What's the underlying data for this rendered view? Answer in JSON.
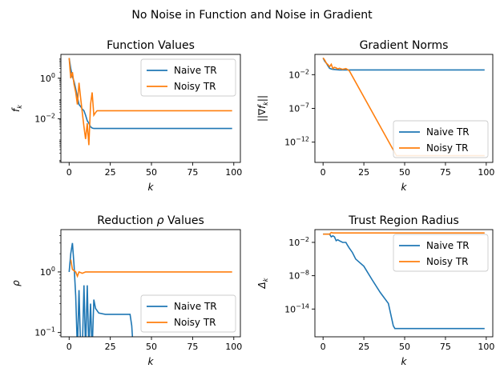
{
  "figure": {
    "suptitle": "No Noise in Function and Noise in Gradient"
  },
  "colors": {
    "naive": "#1f77b4",
    "noisy": "#ff7f0e"
  },
  "chart_data": [
    {
      "id": "function-values",
      "type": "line",
      "title": "Function Values",
      "xlabel": "k",
      "ylabel": "f_k",
      "ylabel_base": "f",
      "ylabel_sub": "k",
      "yscale": "log",
      "xlim": [
        -5,
        104
      ],
      "ylim": [
        7e-05,
        15
      ],
      "xticks": [
        0,
        25,
        50,
        75,
        100
      ],
      "yticks": [
        {
          "v": 1,
          "base": "10",
          "exp": "0"
        },
        {
          "v": 0.01,
          "base": "10",
          "exp": "−2"
        }
      ],
      "legend": "top-right",
      "series": [
        {
          "name": "Naive TR",
          "color": "#1f77b4",
          "points": [
            [
              0,
              10
            ],
            [
              1,
              3
            ],
            [
              2,
              1.2
            ],
            [
              3,
              0.7
            ],
            [
              4,
              0.3
            ],
            [
              5,
              0.12
            ],
            [
              6,
              0.05
            ],
            [
              7,
              0.04
            ],
            [
              8,
              0.03
            ],
            [
              9,
              0.025
            ],
            [
              10,
              0.015
            ],
            [
              11,
              0.008
            ],
            [
              12,
              0.006
            ],
            [
              13,
              0.004
            ],
            [
              14,
              0.0035
            ],
            [
              15,
              0.0033
            ],
            [
              20,
              0.0033
            ],
            [
              99,
              0.0033
            ]
          ]
        },
        {
          "name": "Noisy TR",
          "color": "#ff7f0e",
          "points": [
            [
              0,
              10
            ],
            [
              1,
              1
            ],
            [
              2,
              2
            ],
            [
              3,
              0.5
            ],
            [
              4,
              0.2
            ],
            [
              5,
              0.05
            ],
            [
              6,
              0.6
            ],
            [
              7,
              0.1
            ],
            [
              8,
              0.02
            ],
            [
              9,
              0.004
            ],
            [
              10,
              0.001
            ],
            [
              11,
              0.006
            ],
            [
              12,
              0.0005
            ],
            [
              13,
              0.05
            ],
            [
              14,
              0.2
            ],
            [
              15,
              0.015
            ],
            [
              16,
              0.02
            ],
            [
              17,
              0.025
            ],
            [
              99,
              0.025
            ]
          ]
        }
      ]
    },
    {
      "id": "gradient-norms",
      "type": "line",
      "title": "Gradient Norms",
      "xlabel": "k",
      "ylabel": "||∇f_k||",
      "ylabel_base": "||∇f",
      "ylabel_sub": "k",
      "ylabel_post": "||",
      "yscale": "log",
      "xlim": [
        -5,
        104
      ],
      "ylim": [
        1e-15,
        10
      ],
      "xticks": [
        0,
        25,
        50,
        75,
        100
      ],
      "yticks": [
        {
          "v": 0.01,
          "base": "10",
          "exp": "−2"
        },
        {
          "v": 1e-07,
          "base": "10",
          "exp": "−7"
        },
        {
          "v": 1e-12,
          "base": "10",
          "exp": "−12"
        }
      ],
      "legend": "bottom-right",
      "series": [
        {
          "name": "Naive TR",
          "color": "#1f77b4",
          "points": [
            [
              0,
              3
            ],
            [
              1,
              1
            ],
            [
              2,
              0.5
            ],
            [
              3,
              0.2
            ],
            [
              4,
              0.09
            ],
            [
              5,
              0.07
            ],
            [
              6,
              0.06
            ],
            [
              8,
              0.055
            ],
            [
              10,
              0.05
            ],
            [
              99,
              0.05
            ]
          ]
        },
        {
          "name": "Noisy TR",
          "color": "#ff7f0e",
          "points": [
            [
              0,
              3
            ],
            [
              1,
              1.5
            ],
            [
              2,
              0.5
            ],
            [
              3,
              0.3
            ],
            [
              4,
              0.15
            ],
            [
              5,
              0.35
            ],
            [
              6,
              0.08
            ],
            [
              7,
              0.12
            ],
            [
              8,
              0.1
            ],
            [
              9,
              0.07
            ],
            [
              10,
              0.09
            ],
            [
              12,
              0.06
            ],
            [
              14,
              0.08
            ],
            [
              16,
              0.04
            ],
            [
              45,
              1e-14
            ],
            [
              99,
              1e-14
            ]
          ]
        }
      ]
    },
    {
      "id": "reduction-rho",
      "type": "line",
      "title": "Reduction ρ Values",
      "title_plain": "Reduction ",
      "title_symbol": "ρ",
      "title_tail": " Values",
      "xlabel": "k",
      "ylabel": "ρ",
      "yscale": "log",
      "xlim": [
        -5,
        104
      ],
      "ylim": [
        0.085,
        5
      ],
      "xticks": [
        0,
        25,
        50,
        75,
        100
      ],
      "yticks": [
        {
          "v": 1,
          "base": "10",
          "exp": "0"
        },
        {
          "v": 0.1,
          "base": "10",
          "exp": "−1"
        }
      ],
      "legend": "bottom-right",
      "series": [
        {
          "name": "Naive TR",
          "color": "#1f77b4",
          "points": [
            [
              0,
              1
            ],
            [
              1,
              2
            ],
            [
              2,
              3
            ],
            [
              3,
              1.3
            ],
            [
              4,
              0.4
            ],
            [
              5,
              0.05
            ],
            [
              6,
              0.5
            ],
            [
              7,
              0.05
            ],
            [
              8,
              0.05
            ],
            [
              9,
              0.6
            ],
            [
              10,
              0.05
            ],
            [
              11,
              0.6
            ],
            [
              12,
              0.05
            ],
            [
              13,
              0.3
            ],
            [
              14,
              0.05
            ],
            [
              15,
              0.35
            ],
            [
              16,
              0.25
            ],
            [
              18,
              0.21
            ],
            [
              22,
              0.2
            ],
            [
              30,
              0.2
            ],
            [
              37,
              0.2
            ],
            [
              38,
              0.13
            ],
            [
              39,
              0.05
            ]
          ]
        },
        {
          "name": "Noisy TR",
          "color": "#ff7f0e",
          "points": [
            [
              1,
              1.6
            ],
            [
              2,
              1.1
            ],
            [
              3,
              1.05
            ],
            [
              4,
              1
            ],
            [
              5,
              0.85
            ],
            [
              6,
              1
            ],
            [
              8,
              0.95
            ],
            [
              10,
              1
            ],
            [
              99,
              1
            ]
          ]
        }
      ]
    },
    {
      "id": "trust-region-radius",
      "type": "line",
      "title": "Trust Region Radius",
      "xlabel": "k",
      "ylabel": "Δ_k",
      "ylabel_base": "Δ",
      "ylabel_sub": "k",
      "yscale": "log",
      "xlim": [
        -5,
        104
      ],
      "ylim": [
        1e-19,
        2
      ],
      "xticks": [
        0,
        25,
        50,
        75,
        100
      ],
      "yticks": [
        {
          "v": 0.01,
          "base": "10",
          "exp": "−2"
        },
        {
          "v": 1e-08,
          "base": "10",
          "exp": "−8"
        },
        {
          "v": 1e-14,
          "base": "10",
          "exp": "−14"
        }
      ],
      "legend": "top-right",
      "series": [
        {
          "name": "Naive TR",
          "color": "#1f77b4",
          "points": [
            [
              0,
              0.3
            ],
            [
              4,
              0.3
            ],
            [
              5,
              0.1
            ],
            [
              6,
              0.15
            ],
            [
              7,
              0.1
            ],
            [
              8,
              0.02
            ],
            [
              9,
              0.03
            ],
            [
              10,
              0.02
            ],
            [
              12,
              0.01
            ],
            [
              14,
              0.01
            ],
            [
              15,
              0.003
            ],
            [
              16,
              0.001
            ],
            [
              18,
              0.00015
            ],
            [
              20,
              1e-05
            ],
            [
              25,
              5e-07
            ],
            [
              30,
              2e-09
            ],
            [
              35,
              1e-11
            ],
            [
              40,
              1e-13
            ],
            [
              43,
              1e-17
            ],
            [
              44,
              3e-18
            ],
            [
              99,
              3e-18
            ]
          ]
        },
        {
          "name": "Noisy TR",
          "color": "#ff7f0e",
          "points": [
            [
              0,
              0.3
            ],
            [
              4,
              0.3
            ],
            [
              5,
              0.6
            ],
            [
              6,
              0.5
            ],
            [
              7,
              0.5
            ],
            [
              99,
              0.5
            ]
          ]
        }
      ]
    }
  ]
}
